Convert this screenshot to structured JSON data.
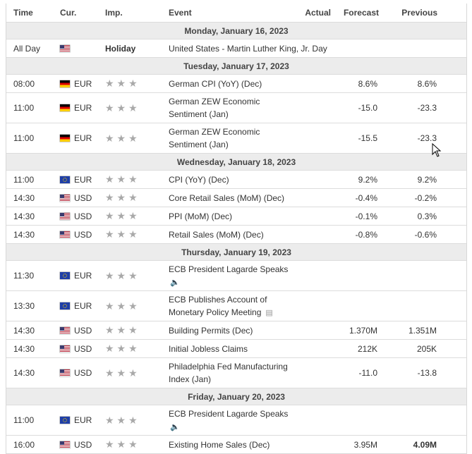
{
  "headers": {
    "time": "Time",
    "cur": "Cur.",
    "imp": "Imp.",
    "event": "Event",
    "actual": "Actual",
    "forecast": "Forecast",
    "previous": "Previous"
  },
  "stars": "★★★",
  "days": [
    {
      "label": "Monday, January 16, 2023"
    },
    {
      "label": "Tuesday, January 17, 2023"
    },
    {
      "label": "Wednesday, January 18, 2023"
    },
    {
      "label": "Thursday, January 19, 2023"
    },
    {
      "label": "Friday, January 20, 2023"
    }
  ],
  "events": [
    {
      "time": "All Day",
      "cur": "",
      "flag": "us",
      "imp": "Holiday",
      "event": "United States - Martin Luther King, Jr. Day",
      "actual": "",
      "forecast": "",
      "previous": ""
    },
    {
      "time": "08:00",
      "cur": "EUR",
      "flag": "de",
      "event": "German CPI (YoY) (Dec)",
      "actual": "",
      "forecast": "8.6%",
      "previous": "8.6%"
    },
    {
      "time": "11:00",
      "cur": "EUR",
      "flag": "de",
      "event": "German ZEW Economic",
      "event2": "Sentiment (Jan)",
      "actual": "",
      "forecast": "-15.0",
      "previous": "-23.3"
    },
    {
      "time": "11:00",
      "cur": "EUR",
      "flag": "de",
      "event": "German ZEW Economic",
      "event2": "Sentiment (Jan)",
      "actual": "",
      "forecast": "-15.5",
      "previous": "-23.3"
    },
    {
      "time": "11:00",
      "cur": "EUR",
      "flag": "eu",
      "event": "CPI (YoY) (Dec)",
      "actual": "",
      "forecast": "9.2%",
      "previous": "9.2%"
    },
    {
      "time": "14:30",
      "cur": "USD",
      "flag": "us",
      "event": "Core Retail Sales (MoM) (Dec)",
      "actual": "",
      "forecast": "-0.4%",
      "previous": "-0.2%"
    },
    {
      "time": "14:30",
      "cur": "USD",
      "flag": "us",
      "event": "PPI (MoM) (Dec)",
      "actual": "",
      "forecast": "-0.1%",
      "previous": "0.3%"
    },
    {
      "time": "14:30",
      "cur": "USD",
      "flag": "us",
      "event": "Retail Sales (MoM) (Dec)",
      "actual": "",
      "forecast": "-0.8%",
      "previous": "-0.6%"
    },
    {
      "time": "11:30",
      "cur": "EUR",
      "flag": "eu",
      "event": "ECB President Lagarde Speaks",
      "actual": "",
      "forecast": "",
      "previous": ""
    },
    {
      "time": "13:30",
      "cur": "EUR",
      "flag": "eu",
      "event": "ECB Publishes Account of",
      "event2": "Monetary Policy Meeting",
      "actual": "",
      "forecast": "",
      "previous": ""
    },
    {
      "time": "14:30",
      "cur": "USD",
      "flag": "us",
      "event": "Building Permits (Dec)",
      "actual": "",
      "forecast": "1.370M",
      "previous": "1.351M"
    },
    {
      "time": "14:30",
      "cur": "USD",
      "flag": "us",
      "event": "Initial Jobless Claims",
      "actual": "",
      "forecast": "212K",
      "previous": "205K"
    },
    {
      "time": "14:30",
      "cur": "USD",
      "flag": "us",
      "event": "Philadelphia Fed Manufacturing",
      "event2": "Index (Jan)",
      "actual": "",
      "forecast": "-11.0",
      "previous": "-13.8"
    },
    {
      "time": "11:00",
      "cur": "EUR",
      "flag": "eu",
      "event": "ECB President Lagarde Speaks",
      "actual": "",
      "forecast": "",
      "previous": ""
    },
    {
      "time": "16:00",
      "cur": "USD",
      "flag": "us",
      "event": "Existing Home Sales (Dec)",
      "actual": "",
      "forecast": "3.95M",
      "previous": "4.09M"
    }
  ]
}
